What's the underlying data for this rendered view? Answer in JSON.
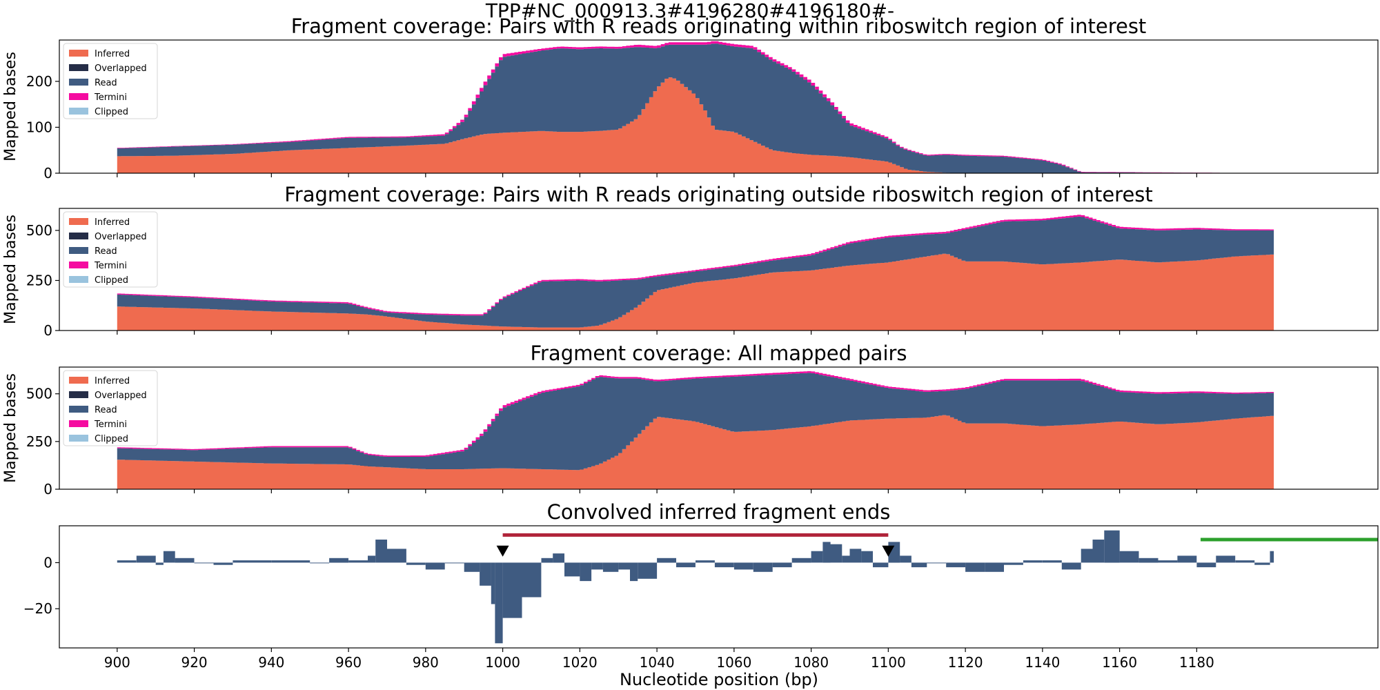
{
  "suptitle": "TPP#NC_000913.3#4196280#4196180#-",
  "xlabel": "Nucleotide position (bp)",
  "ylabel": "Mapped bases",
  "colors": {
    "Inferred": "#ef6b4f",
    "Overlapped": "#252d47",
    "Read": "#3f5b81",
    "Termini": "#f50ba0",
    "Clipped": "#9ac3de",
    "signal": "#3f5b81",
    "red_bar": "#b0243a",
    "green_bar": "#2ca02c",
    "marker": "#000000"
  },
  "legend_entries": [
    "Inferred",
    "Overlapped",
    "Read",
    "Termini",
    "Clipped"
  ],
  "chart_data": [
    {
      "type": "area",
      "title": "Fragment coverage: Pairs with R reads originating within riboswitch region of interest",
      "ylabel": "Mapped bases",
      "legend_position": "top-left",
      "xlim": [
        885,
        1227
      ],
      "ylim": [
        0,
        290
      ],
      "yticks": [
        0,
        100,
        200
      ],
      "series": [
        {
          "name": "Inferred",
          "x": [
            900,
            915,
            930,
            945,
            960,
            975,
            985,
            990,
            995,
            1000,
            1010,
            1015,
            1020,
            1025,
            1030,
            1035,
            1040,
            1043,
            1045,
            1050,
            1053,
            1055,
            1060,
            1065,
            1070,
            1075,
            1080,
            1085,
            1090,
            1095,
            1100,
            1103,
            1105,
            1110,
            1115,
            1120,
            1130,
            1140,
            1145,
            1150,
            1200
          ],
          "values": [
            37,
            38,
            42,
            50,
            55,
            60,
            64,
            75,
            85,
            88,
            92,
            90,
            90,
            92,
            95,
            120,
            185,
            210,
            205,
            170,
            130,
            95,
            90,
            70,
            50,
            44,
            40,
            38,
            35,
            30,
            25,
            15,
            8,
            3,
            1,
            0,
            0,
            0,
            0,
            0,
            0
          ]
        },
        {
          "name": "Read",
          "x": [
            900,
            915,
            930,
            945,
            960,
            975,
            985,
            990,
            995,
            1000,
            1010,
            1015,
            1020,
            1025,
            1030,
            1035,
            1040,
            1043,
            1045,
            1050,
            1053,
            1055,
            1060,
            1065,
            1070,
            1075,
            1080,
            1085,
            1090,
            1095,
            1100,
            1103,
            1105,
            1110,
            1115,
            1120,
            1130,
            1140,
            1145,
            1150,
            1200
          ],
          "values": [
            17,
            20,
            20,
            18,
            22,
            18,
            18,
            40,
            100,
            165,
            175,
            182,
            180,
            180,
            176,
            155,
            87,
            70,
            75,
            110,
            150,
            188,
            186,
            202,
            195,
            180,
            155,
            115,
            70,
            60,
            50,
            42,
            42,
            35,
            39,
            38,
            36,
            28,
            18,
            2,
            0
          ]
        },
        {
          "name": "Termini",
          "x": [
            900,
            915,
            930,
            945,
            960,
            975,
            985,
            990,
            995,
            1000,
            1010,
            1015,
            1020,
            1025,
            1030,
            1035,
            1040,
            1043,
            1045,
            1050,
            1053,
            1055,
            1060,
            1065,
            1070,
            1075,
            1080,
            1085,
            1090,
            1095,
            1100,
            1103,
            1105,
            1110,
            1115,
            1120,
            1130,
            1140,
            1145,
            1150,
            1200
          ],
          "values": [
            1,
            1,
            1,
            2,
            2,
            2,
            3,
            5,
            8,
            6,
            4,
            4,
            4,
            4,
            4,
            5,
            5,
            5,
            5,
            5,
            5,
            5,
            5,
            5,
            5,
            5,
            6,
            6,
            5,
            4,
            3,
            2,
            2,
            2,
            2,
            2,
            2,
            2,
            2,
            1,
            0
          ]
        }
      ]
    },
    {
      "type": "area",
      "title": "Fragment coverage: Pairs with R reads originating outside riboswitch region of interest",
      "ylabel": "Mapped bases",
      "legend_position": "top-left",
      "xlim": [
        885,
        1227
      ],
      "ylim": [
        0,
        610
      ],
      "yticks": [
        0,
        250,
        500
      ],
      "series": [
        {
          "name": "Inferred",
          "x": [
            900,
            920,
            940,
            960,
            965,
            970,
            980,
            990,
            995,
            1000,
            1010,
            1020,
            1025,
            1030,
            1035,
            1040,
            1050,
            1060,
            1070,
            1080,
            1090,
            1100,
            1110,
            1115,
            1120,
            1130,
            1140,
            1150,
            1160,
            1170,
            1180,
            1190,
            1200
          ],
          "values": [
            120,
            110,
            95,
            85,
            80,
            70,
            45,
            30,
            25,
            20,
            15,
            15,
            25,
            60,
            120,
            200,
            240,
            260,
            290,
            300,
            325,
            340,
            370,
            385,
            345,
            345,
            330,
            340,
            355,
            340,
            350,
            370,
            380
          ]
        },
        {
          "name": "Read",
          "x": [
            900,
            920,
            940,
            960,
            965,
            970,
            980,
            990,
            995,
            1000,
            1010,
            1020,
            1025,
            1030,
            1035,
            1040,
            1050,
            1060,
            1070,
            1080,
            1090,
            1100,
            1110,
            1115,
            1120,
            1130,
            1140,
            1150,
            1160,
            1170,
            1180,
            1190,
            1200
          ],
          "values": [
            60,
            55,
            50,
            50,
            30,
            20,
            35,
            45,
            50,
            140,
            230,
            235,
            220,
            190,
            135,
            70,
            55,
            60,
            60,
            75,
            110,
            125,
            110,
            100,
            160,
            200,
            220,
            230,
            155,
            160,
            155,
            130,
            120
          ]
        },
        {
          "name": "Termini",
          "x": [
            900,
            920,
            940,
            960,
            965,
            970,
            980,
            990,
            995,
            1000,
            1010,
            1020,
            1025,
            1030,
            1035,
            1040,
            1050,
            1060,
            1070,
            1080,
            1090,
            1100,
            1110,
            1115,
            1120,
            1130,
            1140,
            1150,
            1160,
            1170,
            1180,
            1190,
            1200
          ],
          "values": [
            5,
            5,
            5,
            6,
            6,
            6,
            6,
            6,
            6,
            6,
            7,
            7,
            7,
            7,
            7,
            7,
            7,
            7,
            8,
            8,
            8,
            8,
            8,
            8,
            8,
            8,
            8,
            9,
            8,
            8,
            8,
            6,
            5
          ]
        }
      ]
    },
    {
      "type": "area",
      "title": "Fragment coverage: All mapped pairs",
      "ylabel": "Mapped bases",
      "legend_position": "top-left",
      "xlim": [
        885,
        1227
      ],
      "ylim": [
        0,
        640
      ],
      "yticks": [
        0,
        250,
        500
      ],
      "series": [
        {
          "name": "Inferred",
          "x": [
            900,
            920,
            940,
            960,
            965,
            970,
            980,
            990,
            995,
            1000,
            1010,
            1020,
            1025,
            1030,
            1035,
            1040,
            1050,
            1060,
            1070,
            1080,
            1090,
            1100,
            1110,
            1115,
            1120,
            1130,
            1140,
            1150,
            1160,
            1170,
            1180,
            1190,
            1200
          ],
          "values": [
            155,
            145,
            135,
            130,
            120,
            115,
            105,
            105,
            108,
            110,
            105,
            100,
            130,
            180,
            280,
            380,
            355,
            300,
            310,
            330,
            360,
            370,
            375,
            390,
            345,
            345,
            330,
            340,
            355,
            340,
            350,
            370,
            385
          ]
        },
        {
          "name": "Read",
          "x": [
            900,
            920,
            940,
            960,
            965,
            970,
            980,
            990,
            995,
            1000,
            1010,
            1020,
            1025,
            1030,
            1035,
            1040,
            1050,
            1060,
            1070,
            1080,
            1090,
            1100,
            1110,
            1115,
            1120,
            1130,
            1140,
            1150,
            1160,
            1170,
            1180,
            1190,
            1200
          ],
          "values": [
            60,
            60,
            85,
            90,
            60,
            55,
            65,
            95,
            180,
            315,
            400,
            440,
            460,
            400,
            300,
            185,
            225,
            290,
            290,
            280,
            210,
            160,
            135,
            125,
            180,
            225,
            240,
            230,
            155,
            160,
            155,
            130,
            120
          ]
        },
        {
          "name": "Termini",
          "x": [
            900,
            920,
            940,
            960,
            965,
            970,
            980,
            990,
            995,
            1000,
            1010,
            1020,
            1025,
            1030,
            1035,
            1040,
            1050,
            1060,
            1070,
            1080,
            1090,
            1100,
            1110,
            1115,
            1120,
            1130,
            1140,
            1150,
            1160,
            1170,
            1180,
            1190,
            1200
          ],
          "values": [
            5,
            5,
            6,
            6,
            6,
            6,
            7,
            8,
            12,
            12,
            9,
            8,
            8,
            8,
            8,
            8,
            8,
            8,
            9,
            9,
            9,
            8,
            8,
            8,
            8,
            8,
            8,
            9,
            8,
            8,
            8,
            6,
            5
          ]
        }
      ]
    },
    {
      "type": "bar",
      "title": "Convolved inferred fragment ends",
      "xlabel": "Nucleotide position (bp)",
      "xlim": [
        885,
        1227
      ],
      "ylim": [
        -37,
        16
      ],
      "yticks": [
        -20,
        0
      ],
      "xticks": [
        900,
        920,
        940,
        960,
        980,
        1000,
        1020,
        1040,
        1060,
        1080,
        1100,
        1120,
        1140,
        1160,
        1180
      ],
      "x": [
        900,
        905,
        910,
        912,
        915,
        920,
        925,
        930,
        940,
        950,
        955,
        960,
        965,
        967,
        970,
        975,
        980,
        985,
        990,
        994,
        997,
        998,
        1000,
        1005,
        1010,
        1013,
        1016,
        1020,
        1023,
        1026,
        1030,
        1033,
        1035,
        1040,
        1045,
        1050,
        1055,
        1060,
        1065,
        1070,
        1075,
        1080,
        1083,
        1085,
        1088,
        1090,
        1093,
        1096,
        1100,
        1103,
        1106,
        1110,
        1115,
        1120,
        1125,
        1130,
        1135,
        1140,
        1145,
        1150,
        1153,
        1156,
        1160,
        1165,
        1170,
        1175,
        1180,
        1185,
        1190,
        1195,
        1199
      ],
      "values": [
        1,
        3,
        -1,
        5,
        2,
        0,
        -1,
        1,
        1,
        0,
        2,
        1,
        3,
        10,
        6,
        -1,
        -3,
        0,
        -4,
        -10,
        -18,
        -35,
        -24,
        -15,
        2,
        4,
        -6,
        -8,
        -3,
        -4,
        -3,
        -8,
        -7,
        2,
        -2,
        1,
        -2,
        -3,
        -4,
        -2,
        2,
        5,
        9,
        8,
        3,
        6,
        5,
        -2,
        9,
        3,
        -2,
        0,
        -2,
        -4,
        -4,
        -1,
        1,
        1,
        -3,
        6,
        10,
        14,
        5,
        2,
        1,
        3,
        -2,
        3,
        1,
        -1,
        5
      ],
      "markers": [
        1000,
        1100
      ],
      "spans": [
        {
          "color": "red_bar",
          "start": 1000,
          "end": 1100,
          "level": 12
        },
        {
          "color": "green_bar",
          "start": 1181,
          "end": 1227,
          "level": 10
        }
      ]
    }
  ]
}
